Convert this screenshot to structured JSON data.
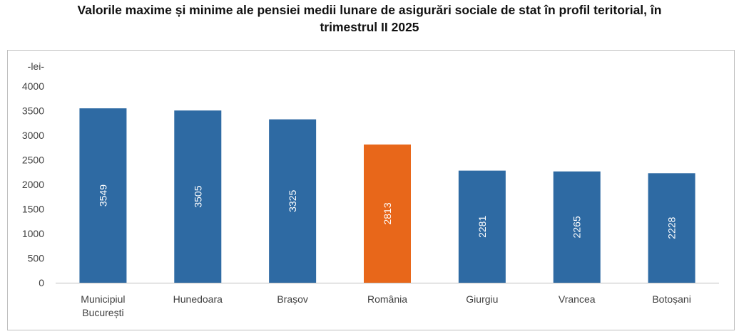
{
  "header": {
    "title_line1": "Valorile maxime și minime ale pensiei medii lunare de asigurări sociale de stat în profil teritorial, în",
    "title_line2": "trimestrul II 2025"
  },
  "colors": {
    "bar": "#2e6aa3",
    "highlight": "#e8671a",
    "axis": "#bfbfbf"
  },
  "chart_data": {
    "type": "bar",
    "title": "Valorile maxime și minime ale pensiei medii lunare de asigurări sociale de stat în profil teritorial, în trimestrul II 2025",
    "ylabel": "-lei-",
    "xlabel": "",
    "ylim": [
      0,
      4000
    ],
    "yticks": [
      0,
      500,
      1000,
      1500,
      2000,
      2500,
      3000,
      3500,
      4000
    ],
    "categories": [
      [
        "Municipiul",
        "București"
      ],
      [
        "Hunedoara"
      ],
      [
        "Brașov"
      ],
      [
        "România"
      ],
      [
        "Giurgiu"
      ],
      [
        "Vrancea"
      ],
      [
        "Botoșani"
      ]
    ],
    "values": [
      3549,
      3505,
      3325,
      2813,
      2281,
      2265,
      2228
    ],
    "highlight_index": 3,
    "grid": false,
    "data_labels": "inside-rotated"
  }
}
